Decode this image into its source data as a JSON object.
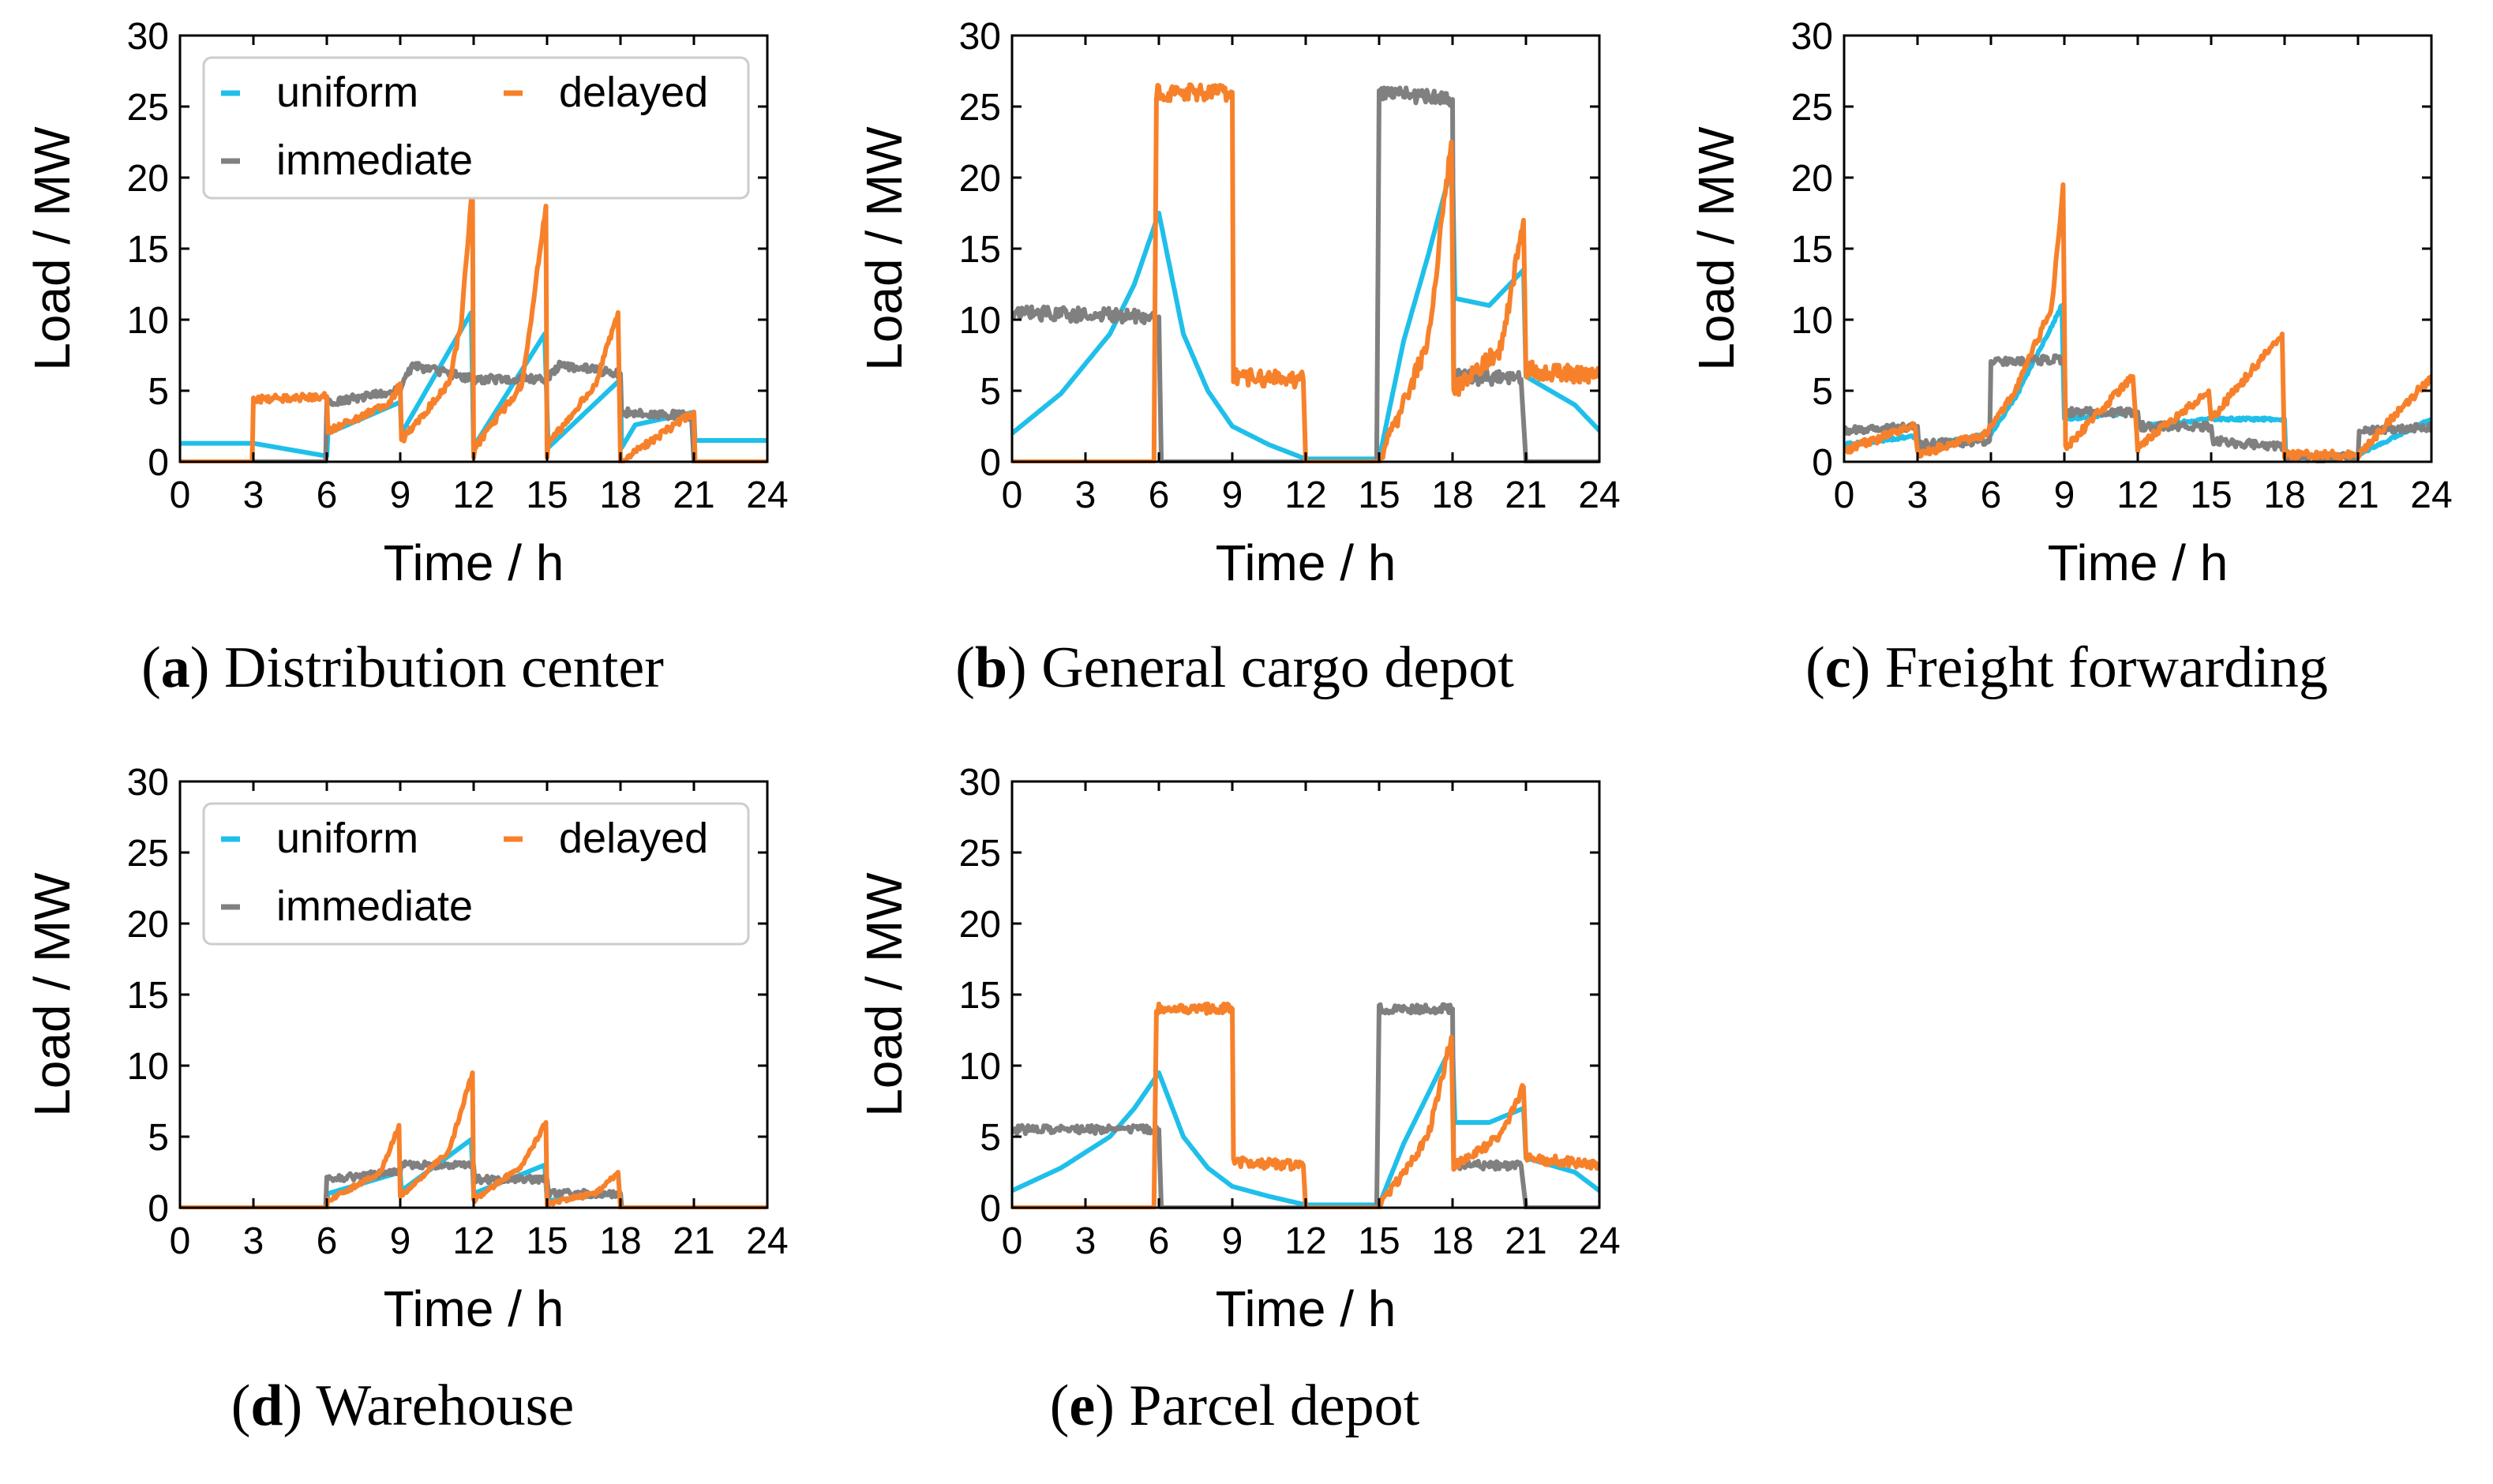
{
  "figure": {
    "series_names": [
      "uniform",
      "delayed",
      "immediate"
    ],
    "colors": {
      "uniform": "#1fbfea",
      "delayed": "#f7812a",
      "immediate": "#808080"
    }
  },
  "chart_data": [
    {
      "type": "line",
      "panel": "a",
      "caption_label": "a",
      "caption_text": "Distribution center",
      "xlabel": "Time / h",
      "ylabel": "Load / MW",
      "xlim": [
        0,
        24
      ],
      "ylim": [
        0,
        30
      ],
      "xticks": [
        0,
        3,
        6,
        9,
        12,
        15,
        18,
        21,
        24
      ],
      "yticks": [
        0,
        5,
        10,
        15,
        20,
        25,
        30
      ],
      "legend": "top-left",
      "series": [
        {
          "name": "uniform",
          "noise": 0.0,
          "points": [
            [
              0,
              1.3
            ],
            [
              3,
              1.3
            ],
            [
              6,
              0.4
            ],
            [
              6.05,
              2.0
            ],
            [
              9,
              4.2
            ],
            [
              9.05,
              2.0
            ],
            [
              11.9,
              10.5
            ],
            [
              12,
              0.5
            ],
            [
              12.05,
              1.2
            ],
            [
              14.9,
              9.0
            ],
            [
              15.05,
              1.0
            ],
            [
              18,
              5.8
            ],
            [
              18.05,
              1.0
            ],
            [
              18.6,
              2.6
            ],
            [
              21,
              3.5
            ],
            [
              21.05,
              1.5
            ],
            [
              24,
              1.5
            ]
          ]
        },
        {
          "name": "delayed",
          "noise": 0.25,
          "points": [
            [
              0,
              0
            ],
            [
              2.95,
              0
            ],
            [
              3,
              4.4
            ],
            [
              6,
              4.6
            ],
            [
              6.05,
              2.2
            ],
            [
              8.5,
              4.0
            ],
            [
              9,
              5.5
            ],
            [
              9.05,
              1.5
            ],
            [
              11.0,
              5.5
            ],
            [
              11.5,
              10.0
            ],
            [
              11.95,
              19.5
            ],
            [
              12,
              0.3
            ],
            [
              12.05,
              1.0
            ],
            [
              14,
              5.5
            ],
            [
              14.95,
              18.0
            ],
            [
              15,
              0.3
            ],
            [
              15.05,
              1.2
            ],
            [
              17,
              5.5
            ],
            [
              17.9,
              10.5
            ],
            [
              18,
              0
            ],
            [
              21,
              3.5
            ],
            [
              21.05,
              0
            ],
            [
              24,
              0
            ]
          ]
        },
        {
          "name": "immediate",
          "noise": 0.3,
          "points": [
            [
              0,
              0
            ],
            [
              5.95,
              0
            ],
            [
              6,
              4.2
            ],
            [
              9,
              5.0
            ],
            [
              9.5,
              6.8
            ],
            [
              12,
              5.8
            ],
            [
              15,
              5.8
            ],
            [
              15.5,
              6.8
            ],
            [
              18,
              6.2
            ],
            [
              18.05,
              3.5
            ],
            [
              20.9,
              3.2
            ],
            [
              21,
              0
            ],
            [
              24,
              0
            ]
          ]
        }
      ]
    },
    {
      "type": "line",
      "panel": "b",
      "caption_label": "b",
      "caption_text": "General cargo depot",
      "xlabel": "Time / h",
      "ylabel": "Load / MW",
      "xlim": [
        0,
        24
      ],
      "ylim": [
        0,
        30
      ],
      "xticks": [
        0,
        3,
        6,
        9,
        12,
        15,
        18,
        21,
        24
      ],
      "yticks": [
        0,
        5,
        10,
        15,
        20,
        25,
        30
      ],
      "series": [
        {
          "name": "uniform",
          "noise": 0.0,
          "points": [
            [
              0,
              2.0
            ],
            [
              2,
              4.8
            ],
            [
              4,
              9.0
            ],
            [
              5,
              12.5
            ],
            [
              6,
              17.5
            ],
            [
              7,
              9.0
            ],
            [
              8,
              5.0
            ],
            [
              9,
              2.5
            ],
            [
              10.5,
              1.2
            ],
            [
              12,
              0.2
            ],
            [
              15,
              0.2
            ],
            [
              16,
              8.5
            ],
            [
              17,
              14.5
            ],
            [
              18,
              21.0
            ],
            [
              18.1,
              11.5
            ],
            [
              19.5,
              11.0
            ],
            [
              20.9,
              13.5
            ],
            [
              21,
              6.0
            ],
            [
              23,
              4.0
            ],
            [
              24,
              2.2
            ]
          ]
        },
        {
          "name": "delayed",
          "noise": 0.6,
          "points": [
            [
              0,
              0
            ],
            [
              5.8,
              0
            ],
            [
              5.9,
              26.0
            ],
            [
              9,
              26.0
            ],
            [
              9.05,
              6.0
            ],
            [
              11.9,
              5.8
            ],
            [
              12,
              0
            ],
            [
              15,
              0
            ],
            [
              16,
              4.0
            ],
            [
              17,
              8.5
            ],
            [
              17.95,
              22.5
            ],
            [
              18.05,
              5.0
            ],
            [
              20,
              8.0
            ],
            [
              20.9,
              17.0
            ],
            [
              21,
              6.5
            ],
            [
              24,
              6.0
            ]
          ]
        },
        {
          "name": "immediate",
          "noise": 0.5,
          "points": [
            [
              0,
              10.5
            ],
            [
              6,
              10.2
            ],
            [
              6.1,
              0
            ],
            [
              14.9,
              0
            ],
            [
              15,
              26.0
            ],
            [
              18,
              25.5
            ],
            [
              18.05,
              6.0
            ],
            [
              20.8,
              5.8
            ],
            [
              21,
              0
            ],
            [
              24,
              0
            ]
          ]
        }
      ]
    },
    {
      "type": "line",
      "panel": "c",
      "caption_label": "c",
      "caption_text": "Freight forwarding",
      "xlabel": "Time / h",
      "ylabel": "Load / MW",
      "xlim": [
        0,
        24
      ],
      "ylim": [
        0,
        30
      ],
      "xticks": [
        0,
        3,
        6,
        9,
        12,
        15,
        18,
        21,
        24
      ],
      "yticks": [
        0,
        5,
        10,
        15,
        20,
        25,
        30
      ],
      "series": [
        {
          "name": "uniform",
          "noise": 0.1,
          "points": [
            [
              0,
              1.2
            ],
            [
              3,
              1.8
            ],
            [
              3.05,
              1.0
            ],
            [
              6,
              2.0
            ],
            [
              7,
              4.5
            ],
            [
              8.9,
              11.0
            ],
            [
              9,
              3.0
            ],
            [
              12,
              3.5
            ],
            [
              12.05,
              2.5
            ],
            [
              15,
              3.0
            ],
            [
              18,
              3.0
            ],
            [
              18.05,
              0.3
            ],
            [
              21,
              0.5
            ],
            [
              24,
              3.0
            ]
          ]
        },
        {
          "name": "delayed",
          "noise": 0.3,
          "points": [
            [
              0,
              0.8
            ],
            [
              2.9,
              2.5
            ],
            [
              3,
              0.5
            ],
            [
              5.8,
              2.0
            ],
            [
              7,
              5.0
            ],
            [
              8.5,
              11.0
            ],
            [
              8.95,
              19.5
            ],
            [
              9.05,
              1.0
            ],
            [
              11.8,
              6.0
            ],
            [
              12,
              1.0
            ],
            [
              14.9,
              5.0
            ],
            [
              15,
              3.0
            ],
            [
              17.9,
              9.0
            ],
            [
              18,
              0.5
            ],
            [
              21,
              0.5
            ],
            [
              24,
              6.0
            ]
          ]
        },
        {
          "name": "immediate",
          "noise": 0.3,
          "points": [
            [
              0,
              2.2
            ],
            [
              3,
              2.5
            ],
            [
              3.05,
              1.2
            ],
            [
              5.95,
              1.5
            ],
            [
              6,
              7.0
            ],
            [
              9,
              7.2
            ],
            [
              9.05,
              3.5
            ],
            [
              12,
              3.5
            ],
            [
              12.05,
              2.5
            ],
            [
              15,
              2.5
            ],
            [
              15.05,
              1.5
            ],
            [
              18,
              1.0
            ],
            [
              18.05,
              0.3
            ],
            [
              21,
              0.3
            ],
            [
              21.05,
              2.2
            ],
            [
              24,
              2.5
            ]
          ]
        }
      ]
    },
    {
      "type": "line",
      "panel": "d",
      "caption_label": "d",
      "caption_text": "Warehouse",
      "xlabel": "Time / h",
      "ylabel": "Load / MW",
      "xlim": [
        0,
        24
      ],
      "ylim": [
        0,
        30
      ],
      "xticks": [
        0,
        3,
        6,
        9,
        12,
        15,
        18,
        21,
        24
      ],
      "yticks": [
        0,
        5,
        10,
        15,
        20,
        25,
        30
      ],
      "legend": "top-left",
      "series": [
        {
          "name": "uniform",
          "noise": 0.0,
          "points": [
            [
              0,
              0
            ],
            [
              6,
              0
            ],
            [
              6.05,
              1.0
            ],
            [
              9,
              2.5
            ],
            [
              9.05,
              1.2
            ],
            [
              11.9,
              4.8
            ],
            [
              12,
              1.0
            ],
            [
              14.9,
              3.0
            ],
            [
              15,
              0.5
            ],
            [
              18,
              1.0
            ],
            [
              18.05,
              0
            ],
            [
              24,
              0
            ]
          ]
        },
        {
          "name": "delayed",
          "noise": 0.15,
          "points": [
            [
              0,
              0
            ],
            [
              6,
              0
            ],
            [
              6.05,
              0.5
            ],
            [
              8.2,
              2.5
            ],
            [
              8.95,
              5.8
            ],
            [
              9,
              0.8
            ],
            [
              11,
              4.0
            ],
            [
              11.95,
              9.5
            ],
            [
              12,
              0.5
            ],
            [
              14,
              3.0
            ],
            [
              14.95,
              6.0
            ],
            [
              15,
              0.3
            ],
            [
              17,
              1.0
            ],
            [
              17.9,
              2.5
            ],
            [
              18,
              0
            ],
            [
              24,
              0
            ]
          ]
        },
        {
          "name": "immediate",
          "noise": 0.25,
          "points": [
            [
              0,
              0
            ],
            [
              5.95,
              0
            ],
            [
              6,
              2.0
            ],
            [
              9,
              2.5
            ],
            [
              9.05,
              3.0
            ],
            [
              12,
              3.0
            ],
            [
              12.05,
              2.0
            ],
            [
              15,
              2.0
            ],
            [
              15.05,
              1.0
            ],
            [
              18,
              1.0
            ],
            [
              18.05,
              0
            ],
            [
              24,
              0
            ]
          ]
        }
      ]
    },
    {
      "type": "line",
      "panel": "e",
      "caption_label": "e",
      "caption_text": "Parcel depot",
      "xlabel": "Time / h",
      "ylabel": "Load / MW",
      "xlim": [
        0,
        24
      ],
      "ylim": [
        0,
        30
      ],
      "xticks": [
        0,
        3,
        6,
        9,
        12,
        15,
        18,
        21,
        24
      ],
      "yticks": [
        0,
        5,
        10,
        15,
        20,
        25,
        30
      ],
      "series": [
        {
          "name": "uniform",
          "noise": 0.0,
          "points": [
            [
              0,
              1.2
            ],
            [
              2,
              2.8
            ],
            [
              4,
              5.0
            ],
            [
              5,
              7.0
            ],
            [
              6,
              9.5
            ],
            [
              7,
              5.0
            ],
            [
              8,
              2.8
            ],
            [
              9,
              1.5
            ],
            [
              10.5,
              0.8
            ],
            [
              12,
              0.2
            ],
            [
              15,
              0.2
            ],
            [
              16,
              4.5
            ],
            [
              17,
              8.0
            ],
            [
              18,
              11.5
            ],
            [
              18.1,
              6.0
            ],
            [
              19.5,
              6.0
            ],
            [
              20.9,
              7.0
            ],
            [
              21,
              3.5
            ],
            [
              23,
              2.5
            ],
            [
              24,
              1.2
            ]
          ]
        },
        {
          "name": "delayed",
          "noise": 0.35,
          "points": [
            [
              0,
              0
            ],
            [
              5.8,
              0
            ],
            [
              5.9,
              14.0
            ],
            [
              9,
              14.0
            ],
            [
              9.05,
              3.2
            ],
            [
              11.9,
              3.0
            ],
            [
              12,
              0
            ],
            [
              15,
              0
            ],
            [
              16,
              2.5
            ],
            [
              17,
              5.0
            ],
            [
              17.95,
              12.0
            ],
            [
              18.05,
              3.0
            ],
            [
              20,
              5.0
            ],
            [
              20.9,
              8.5
            ],
            [
              21,
              3.5
            ],
            [
              24,
              3.0
            ]
          ]
        },
        {
          "name": "immediate",
          "noise": 0.3,
          "points": [
            [
              0,
              5.5
            ],
            [
              6,
              5.5
            ],
            [
              6.1,
              0
            ],
            [
              14.9,
              0
            ],
            [
              15,
              14.0
            ],
            [
              18,
              14.0
            ],
            [
              18.05,
              3.0
            ],
            [
              20.8,
              3.0
            ],
            [
              21,
              0
            ],
            [
              24,
              0
            ]
          ]
        }
      ]
    }
  ]
}
